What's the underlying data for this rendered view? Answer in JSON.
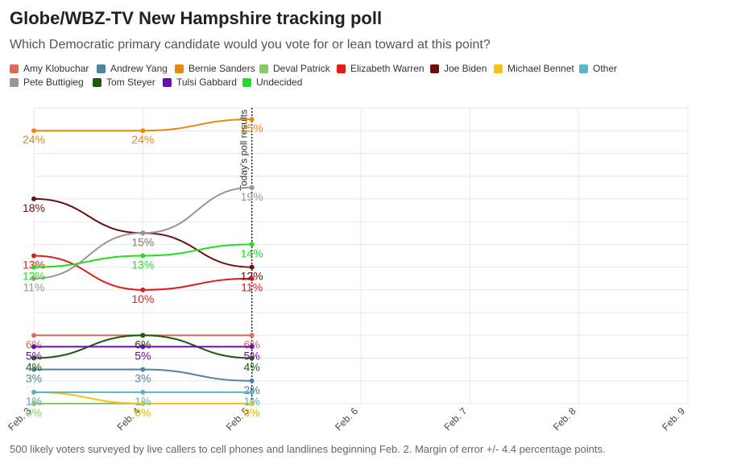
{
  "title": "Globe/WBZ-TV New Hampshire tracking poll",
  "subtitle": "Which Democratic primary candidate would you vote for or lean toward at this point?",
  "footnote": "500 likely voters surveyed by live callers to cell phones and landlines beginning Feb. 2. Margin of error +/- 4.4 percentage points.",
  "chart_data": {
    "type": "line",
    "title": "Globe/WBZ-TV New Hampshire tracking poll",
    "x_categories": [
      "Feb. 3",
      "Feb. 4",
      "Feb. 5",
      "Feb. 6",
      "Feb. 7",
      "Feb. 8",
      "Feb. 9"
    ],
    "ylim": [
      0,
      26
    ],
    "y_grid": true,
    "annotation": {
      "x": "Feb. 5",
      "text": "Today's poll results"
    },
    "series": [
      {
        "name": "Amy Klobuchar",
        "color": "#d96b5d",
        "values": [
          6,
          6,
          6
        ]
      },
      {
        "name": "Andrew Yang",
        "color": "#4f84a0",
        "values": [
          3,
          3,
          2
        ]
      },
      {
        "name": "Bernie Sanders",
        "color": "#e68a0f",
        "values": [
          24,
          24,
          25
        ]
      },
      {
        "name": "Deval Patrick",
        "color": "#8fc56a",
        "values": [
          0,
          0,
          0
        ]
      },
      {
        "name": "Elizabeth Warren",
        "color": "#e01b1b",
        "values": [
          13,
          10,
          11
        ]
      },
      {
        "name": "Joe Biden",
        "color": "#6b0f0f",
        "values": [
          18,
          15,
          12
        ]
      },
      {
        "name": "Michael Bennet",
        "color": "#f2c40f",
        "values": [
          1,
          0,
          0
        ]
      },
      {
        "name": "Other",
        "color": "#5ab4c4",
        "values": [
          1,
          1,
          1
        ]
      },
      {
        "name": "Pete Buttigieg",
        "color": "#9a9590",
        "values": [
          11,
          15,
          19
        ]
      },
      {
        "name": "Tom Steyer",
        "color": "#1f5a0a",
        "values": [
          4,
          6,
          4
        ]
      },
      {
        "name": "Tulsi Gabbard",
        "color": "#6a0dad",
        "values": [
          5,
          5,
          5
        ]
      },
      {
        "name": "Undecided",
        "color": "#22dd22",
        "values": [
          12,
          13,
          14
        ]
      }
    ]
  }
}
